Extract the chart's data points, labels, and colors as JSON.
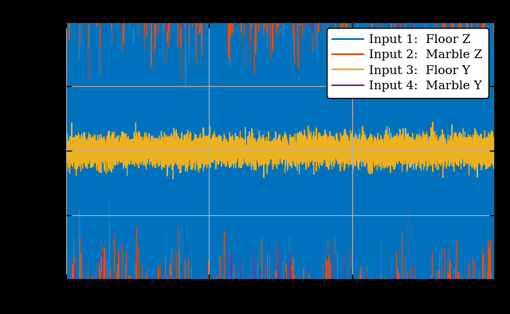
{
  "legend_entries": [
    "Input 1:  Floor Z",
    "Input 2:  Marble Z",
    "Input 3:  Floor Y",
    "Input 4:  Marble Y"
  ],
  "line_colors": [
    "#0072BD",
    "#D95319",
    "#EDB120",
    "#7E2F8E"
  ],
  "background_color": "#FFFFFF",
  "fig_bg_color": "#000000",
  "n_samples": 10000,
  "seed": 42,
  "amp1": 0.55,
  "amp2": 0.6,
  "amp3": 0.06,
  "amp4": 1.0,
  "ylim": [
    -1.0,
    1.0
  ],
  "xlim": [
    0,
    10000
  ],
  "legend_fontsize": 11,
  "legend_loc": "upper right",
  "grid_color": "#B0B0B0",
  "grid_lw": 0.8,
  "line_width": 0.8
}
